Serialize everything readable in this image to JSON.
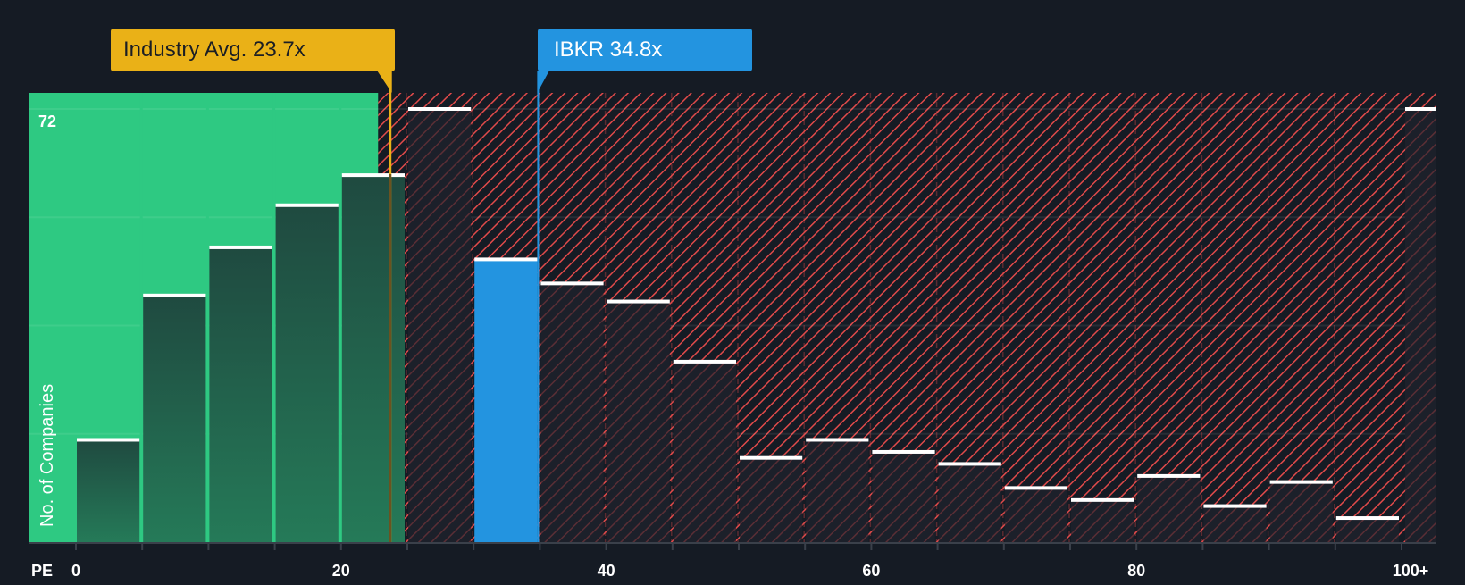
{
  "chart_data": {
    "type": "bar",
    "title": "",
    "xlabel": "PE",
    "ylabel": "No. of Companies",
    "ylim": [
      0,
      72
    ],
    "y_max_label": "72",
    "x_tick_labels": [
      "0",
      "20",
      "40",
      "60",
      "80",
      "100+"
    ],
    "categories": [
      "0-5",
      "5-10",
      "10-15",
      "15-20",
      "20-25",
      "25-30",
      "30-35",
      "35-40",
      "40-45",
      "45-50",
      "50-55",
      "55-60",
      "60-65",
      "65-70",
      "70-75",
      "75-80",
      "80-85",
      "85-90",
      "90-95",
      "95-100",
      "100+"
    ],
    "values": [
      17,
      41,
      49,
      56,
      61,
      72,
      47,
      43,
      40,
      30,
      14,
      17,
      15,
      13,
      9,
      7,
      11,
      6,
      10,
      4,
      72
    ],
    "highlight_bin": "30-35",
    "industry_avg": 23.7,
    "company_value": 34.8,
    "zones": [
      {
        "name": "undervalued",
        "from": 0,
        "to": 23.7,
        "color": "#2ec982"
      },
      {
        "name": "overvalued",
        "from": 23.7,
        "to": 100,
        "color": "#e04a4a",
        "pattern": "diagonal-hatch"
      }
    ],
    "grid": true,
    "legend": "none"
  },
  "annotations": {
    "industry_label": "Industry Avg. 23.7x",
    "company_label": "IBKR 34.8x"
  },
  "colors": {
    "background": "#151b24",
    "green_zone": "#2ec982",
    "industry": "#eab117",
    "company": "#2394e0",
    "hatch": "#e04a4a",
    "bar_cap": "#ffffff"
  }
}
